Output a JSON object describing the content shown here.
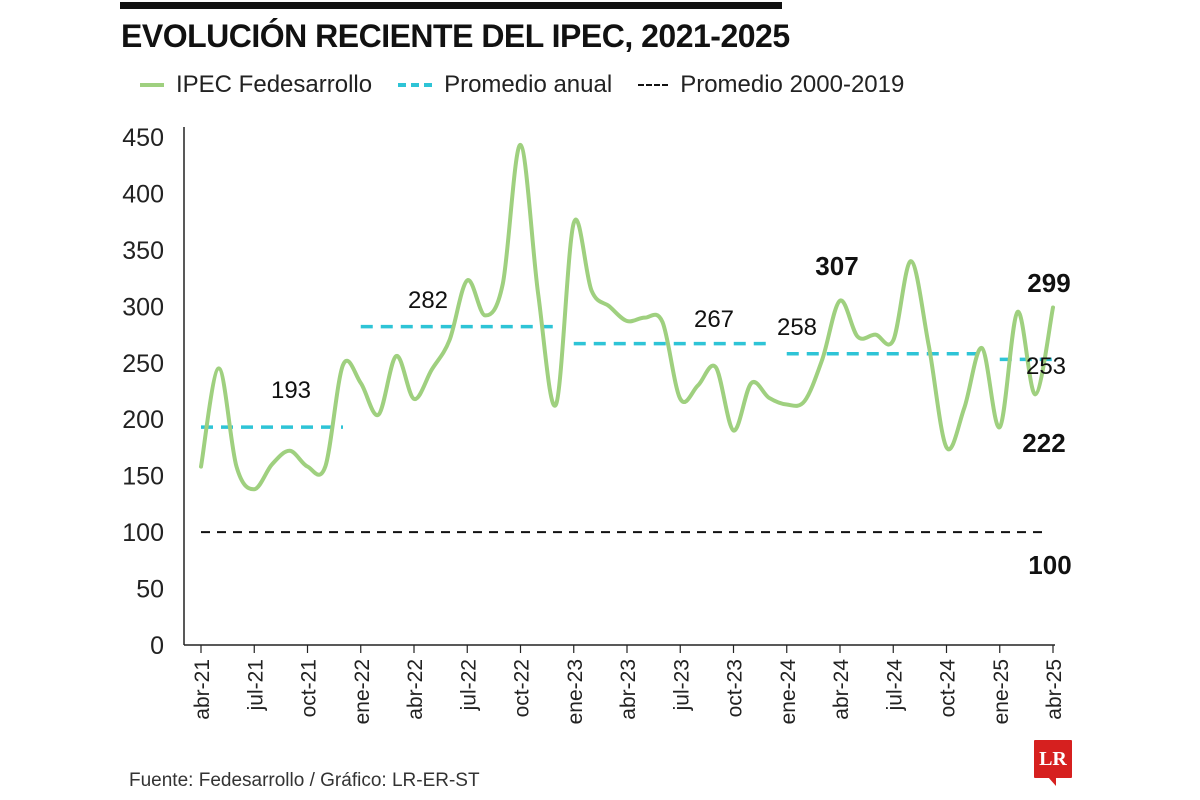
{
  "header": {
    "title": "EVOLUCIÓN RECIENTE DEL IPEC, 2021-2025"
  },
  "footer": {
    "source": "Fuente: Fedesarrollo / Gráfico: LR-ER-ST",
    "logo_text": "LR"
  },
  "colors": {
    "ipec_line": "#9fd07f",
    "annual_avg": "#2ec4d6",
    "long_avg": "#111111"
  },
  "chart_data": {
    "type": "line",
    "title": "EVOLUCIÓN RECIENTE DEL IPEC, 2021-2025",
    "ylim": [
      0,
      450
    ],
    "yticks": [
      0,
      50,
      100,
      150,
      200,
      250,
      300,
      350,
      400,
      450
    ],
    "grid": false,
    "legend_position": "top-left",
    "x_tick_labels": [
      "abr-21",
      "jul-21",
      "oct-21",
      "ene-22",
      "abr-22",
      "jul-22",
      "oct-22",
      "ene-23",
      "abr-23",
      "jul-23",
      "oct-23",
      "ene-24",
      "abr-24",
      "jul-24",
      "oct-24",
      "ene-25",
      "abr-25"
    ],
    "legend": [
      "IPEC Fedesarrollo",
      "Promedio anual",
      "Promedio 2000-2019"
    ],
    "series": [
      {
        "name": "IPEC Fedesarrollo",
        "x": [
          "2021-04",
          "2021-05",
          "2021-06",
          "2021-07",
          "2021-08",
          "2021-09",
          "2021-10",
          "2021-11",
          "2021-12",
          "2022-01",
          "2022-02",
          "2022-03",
          "2022-04",
          "2022-05",
          "2022-06",
          "2022-07",
          "2022-08",
          "2022-09",
          "2022-10",
          "2022-11",
          "2022-12",
          "2023-01",
          "2023-02",
          "2023-03",
          "2023-04",
          "2023-05",
          "2023-06",
          "2023-07",
          "2023-08",
          "2023-09",
          "2023-10",
          "2023-11",
          "2023-12",
          "2024-01",
          "2024-02",
          "2024-03",
          "2024-04",
          "2024-05",
          "2024-06",
          "2024-07",
          "2024-08",
          "2024-09",
          "2024-10",
          "2024-11",
          "2024-12",
          "2025-01",
          "2025-02",
          "2025-03",
          "2025-04"
        ],
        "values": [
          158,
          245,
          158,
          138,
          160,
          172,
          158,
          158,
          248,
          232,
          204,
          256,
          218,
          244,
          270,
          323,
          292,
          320,
          443,
          310,
          213,
          374,
          314,
          300,
          287,
          290,
          286,
          218,
          230,
          246,
          190,
          232,
          219,
          213,
          216,
          253,
          305,
          273,
          275,
          270,
          340,
          265,
          175,
          210,
          263,
          193,
          295,
          222,
          299
        ]
      },
      {
        "name": "Promedio anual",
        "segments": [
          {
            "from": "2021-04",
            "to": "2021-12",
            "value": 193
          },
          {
            "from": "2022-01",
            "to": "2022-12",
            "value": 282
          },
          {
            "from": "2023-01",
            "to": "2023-12",
            "value": 267
          },
          {
            "from": "2024-01",
            "to": "2024-12",
            "value": 258
          },
          {
            "from": "2025-01",
            "to": "2025-04",
            "value": 253
          }
        ]
      },
      {
        "name": "Promedio 2000-2019",
        "value": 100
      }
    ],
    "annotations": [
      {
        "text": "193",
        "bold": false
      },
      {
        "text": "282",
        "bold": false
      },
      {
        "text": "267",
        "bold": false
      },
      {
        "text": "258",
        "bold": false
      },
      {
        "text": "253",
        "bold": false
      },
      {
        "text": "307",
        "bold": true
      },
      {
        "text": "299",
        "bold": true
      },
      {
        "text": "222",
        "bold": true
      },
      {
        "text": "100",
        "bold": true
      }
    ]
  }
}
